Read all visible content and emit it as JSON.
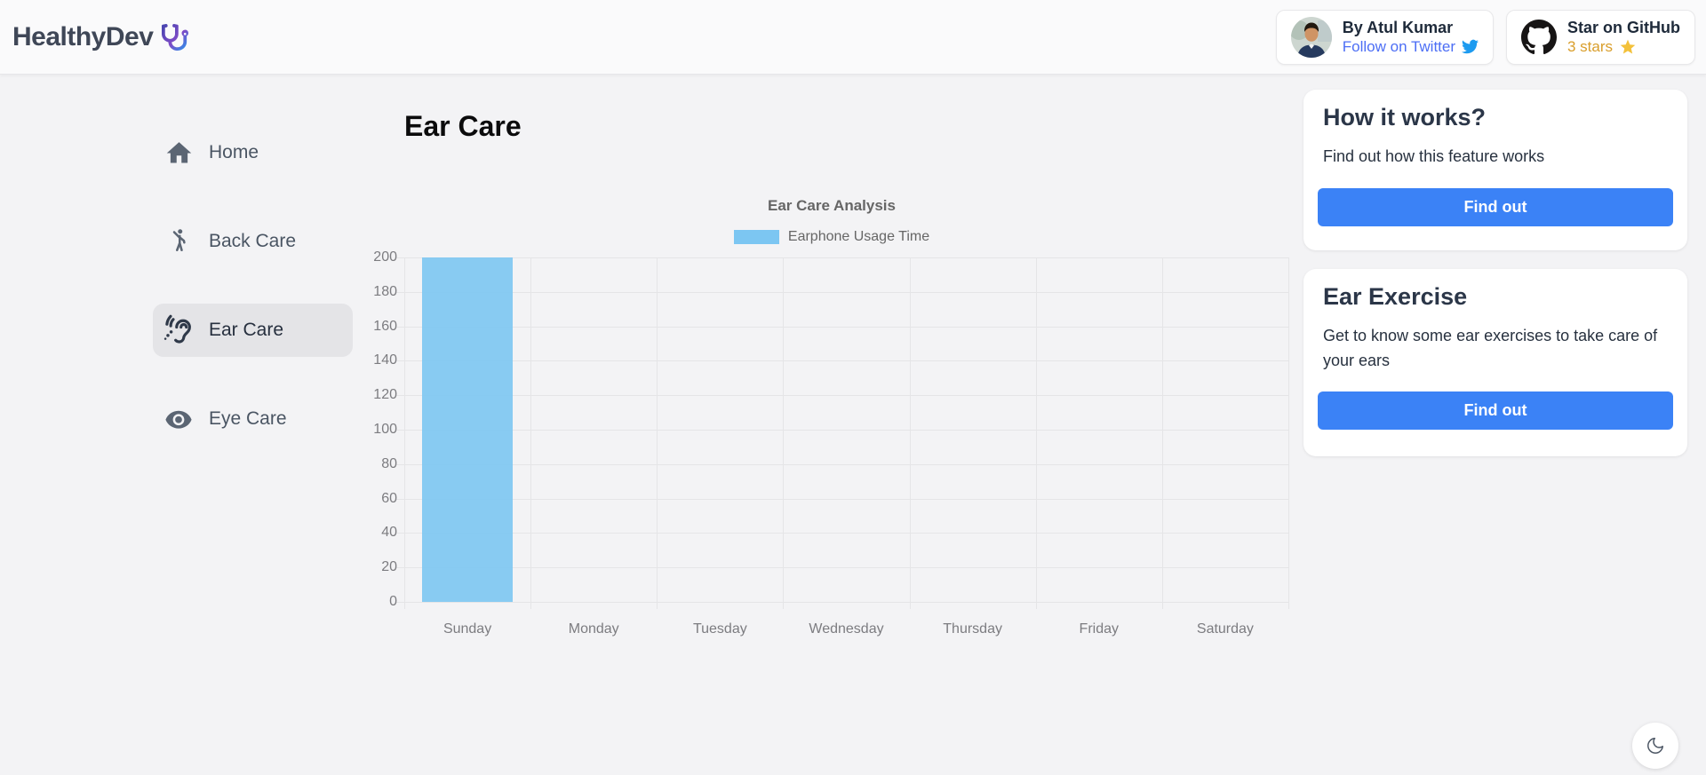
{
  "header": {
    "brand": "HealthyDev",
    "author_card": {
      "name": "By Atul Kumar",
      "link_label": "Follow on Twitter"
    },
    "github_card": {
      "label": "Star on GitHub",
      "stars_label": "3 stars"
    }
  },
  "sidebar": {
    "items": [
      {
        "label": "Home",
        "icon": "home-icon",
        "active": false
      },
      {
        "label": "Back Care",
        "icon": "back-care-icon",
        "active": false
      },
      {
        "label": "Ear Care",
        "icon": "ear-care-icon",
        "active": true
      },
      {
        "label": "Eye Care",
        "icon": "eye-care-icon",
        "active": false
      }
    ]
  },
  "main": {
    "page_title": "Ear Care"
  },
  "chart_data": {
    "type": "bar",
    "title": "Ear Care Analysis",
    "legend": [
      {
        "label": "Earphone Usage Time",
        "color": "#7cc6f2"
      }
    ],
    "legend_position": "top",
    "categories": [
      "Sunday",
      "Monday",
      "Tuesday",
      "Wednesday",
      "Thursday",
      "Friday",
      "Saturday"
    ],
    "series": [
      {
        "name": "Earphone Usage Time",
        "values": [
          200,
          0,
          0,
          0,
          0,
          0,
          0
        ]
      }
    ],
    "xlabel": "",
    "ylabel": "",
    "ylim": [
      0,
      200
    ],
    "ytick_step": 20,
    "grid": true
  },
  "aside": {
    "cards": [
      {
        "title": "How it works?",
        "body": "Find out how this feature works",
        "button_label": "Find out"
      },
      {
        "title": "Ear Exercise",
        "body": "Get to know some ear exercises to take care of your ears",
        "button_label": "Find out"
      }
    ]
  },
  "colors": {
    "accent_blue": "#3b82f6",
    "bar_blue": "#7cc6f2",
    "twitter_link_blue": "#4c6ef5",
    "twitter_icon_blue": "#1d9bf0",
    "star_gold": "#f3c13a",
    "stars_text_gold": "#d99e2b",
    "page_bg": "#f3f3f5",
    "active_item_bg": "#e4e4e7"
  }
}
